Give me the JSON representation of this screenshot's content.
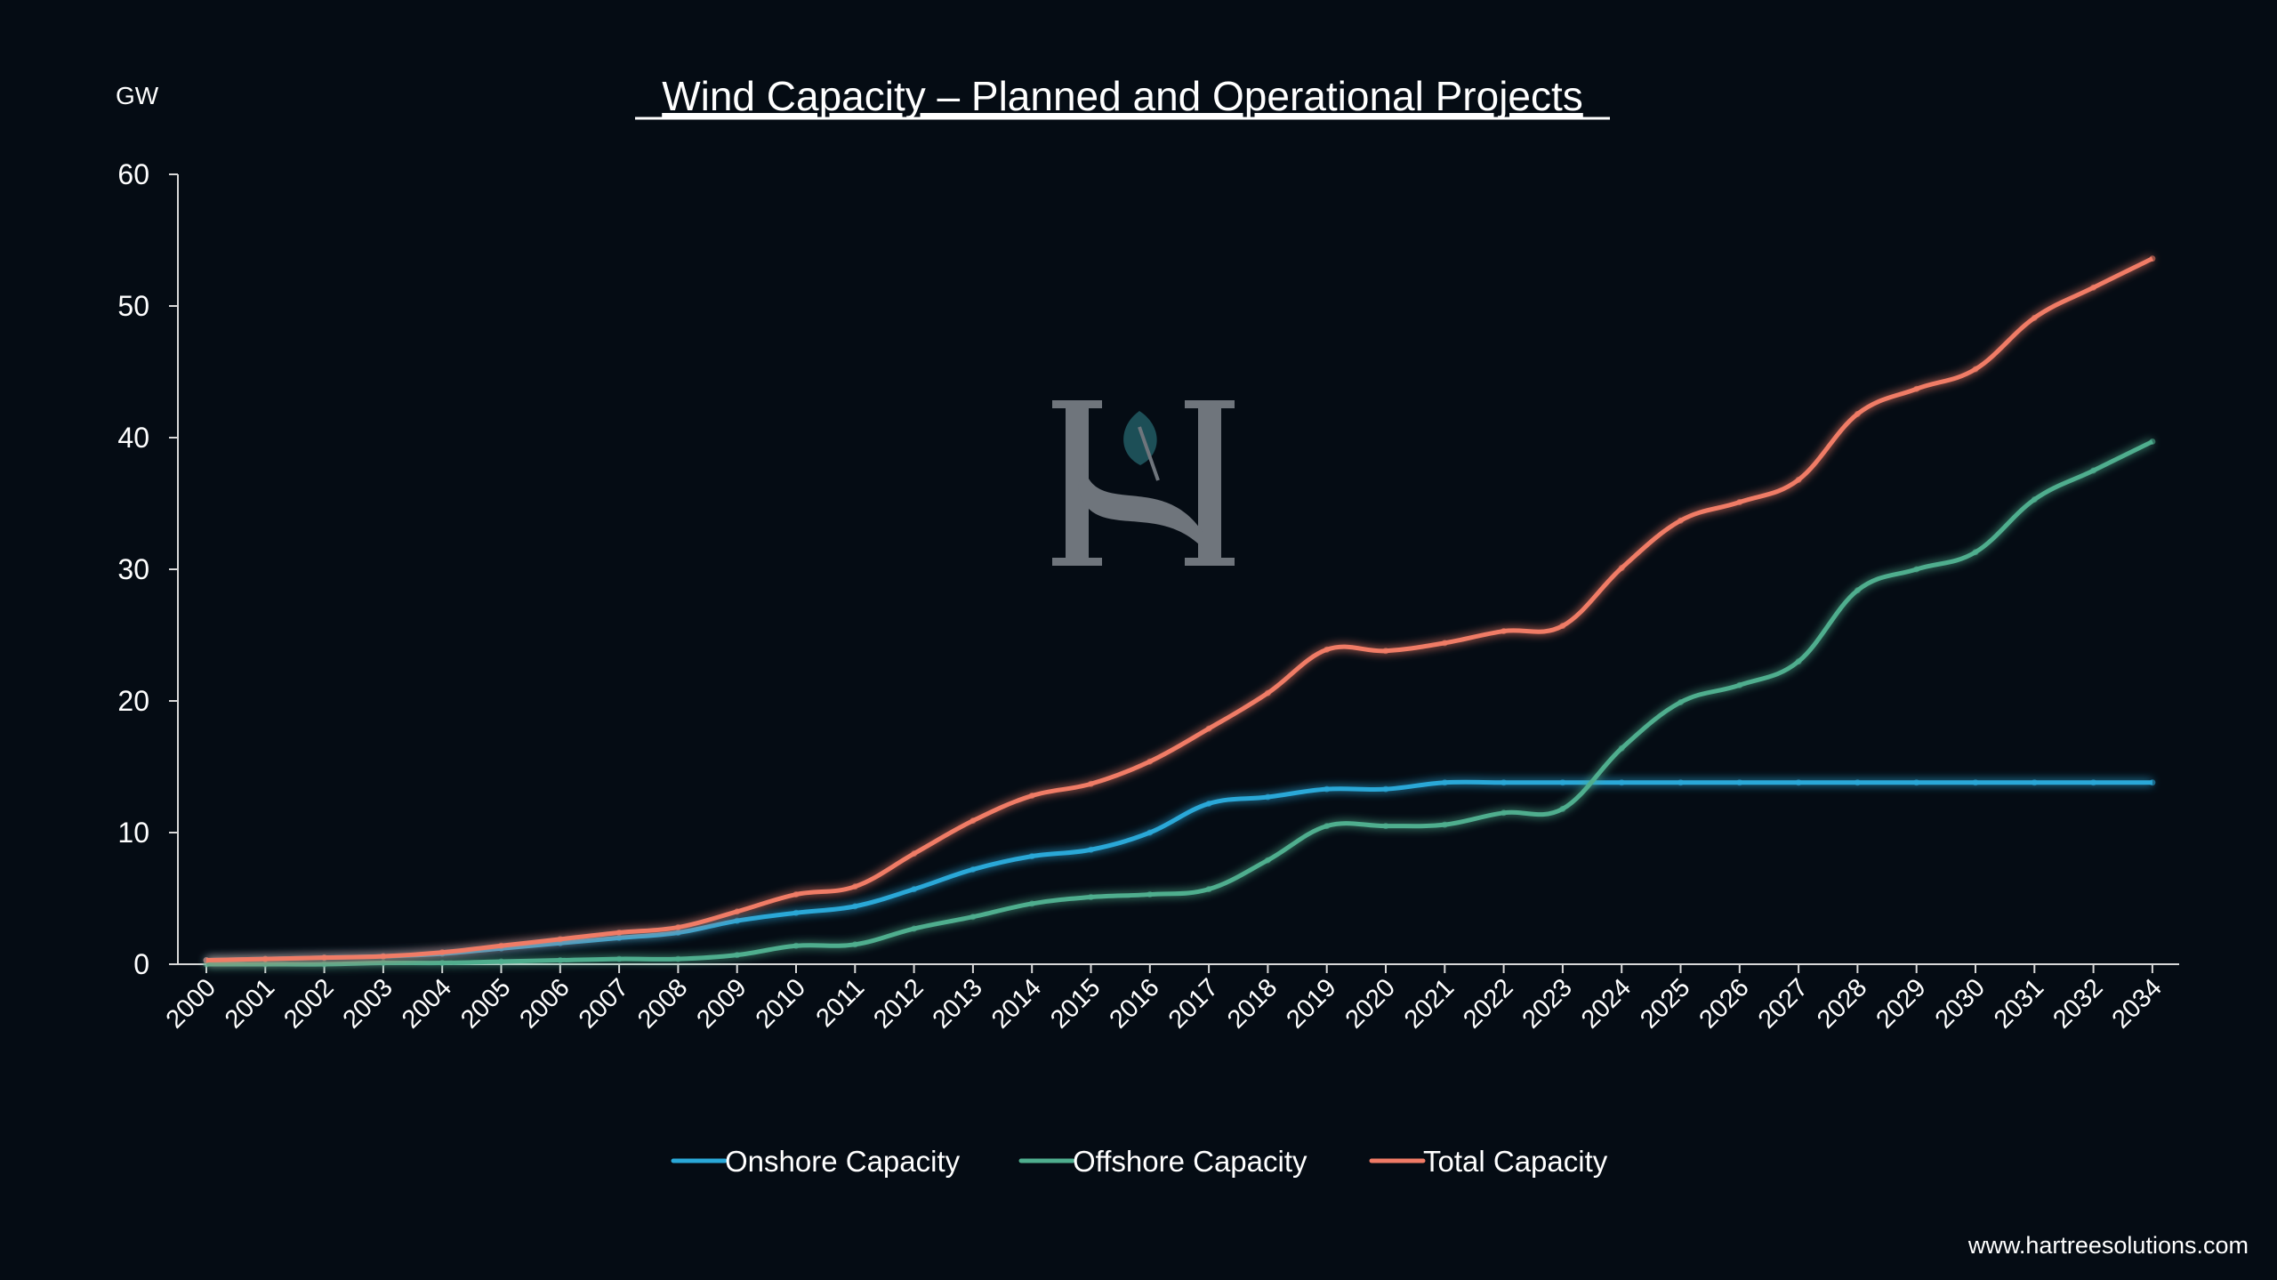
{
  "chart_data": {
    "type": "line",
    "title": "Wind Capacity – Planned and Operational Projects",
    "ylabel": "GW",
    "xlabel": "",
    "ylim": [
      0,
      60
    ],
    "yticks": [
      0,
      10,
      20,
      30,
      40,
      50,
      60
    ],
    "grid": false,
    "legend_position": "bottom",
    "categories": [
      "2000",
      "2001",
      "2002",
      "2003",
      "2004",
      "2005",
      "2006",
      "2007",
      "2008",
      "2009",
      "2010",
      "2011",
      "2012",
      "2013",
      "2014",
      "2015",
      "2016",
      "2017",
      "2018",
      "2019",
      "2020",
      "2021",
      "2022",
      "2023",
      "2024",
      "2025",
      "2026",
      "2027",
      "2028",
      "2029",
      "2030",
      "2031",
      "2032",
      "2034"
    ],
    "series": [
      {
        "name": "Onshore Capacity",
        "color": "#2aa8d8",
        "values": [
          0.3,
          0.4,
          0.5,
          0.6,
          0.8,
          1.2,
          1.6,
          2.0,
          2.4,
          3.3,
          3.9,
          4.4,
          5.7,
          7.2,
          8.2,
          8.7,
          10.0,
          12.2,
          12.7,
          13.3,
          13.3,
          13.8,
          13.8,
          13.8,
          13.8,
          13.8,
          13.8,
          13.8,
          13.8,
          13.8,
          13.8,
          13.8,
          13.8,
          13.8
        ]
      },
      {
        "name": "Offshore Capacity",
        "color": "#4fae8e",
        "values": [
          0.0,
          0.0,
          0.0,
          0.1,
          0.1,
          0.2,
          0.3,
          0.4,
          0.4,
          0.7,
          1.4,
          1.5,
          2.7,
          3.6,
          4.6,
          5.1,
          5.3,
          5.7,
          7.9,
          10.5,
          10.5,
          10.6,
          11.5,
          11.8,
          16.4,
          19.9,
          21.2,
          23.0,
          28.4,
          30.0,
          31.3,
          35.3,
          37.5,
          39.7
        ]
      },
      {
        "name": "Total Capacity",
        "color": "#f07b66",
        "values": [
          0.3,
          0.4,
          0.5,
          0.6,
          0.9,
          1.4,
          1.9,
          2.4,
          2.8,
          4.0,
          5.3,
          5.9,
          8.4,
          10.9,
          12.8,
          13.7,
          15.4,
          17.9,
          20.6,
          23.9,
          23.8,
          24.4,
          25.3,
          25.7,
          30.1,
          33.7,
          35.1,
          36.8,
          41.8,
          43.7,
          45.2,
          49.1,
          51.4,
          53.6
        ]
      }
    ]
  },
  "footer": {
    "url": "www.hartreesolutions.com"
  },
  "watermark": {
    "letter": "H",
    "leaf_color": "#1d4f57",
    "letter_color": "#6f757c"
  }
}
